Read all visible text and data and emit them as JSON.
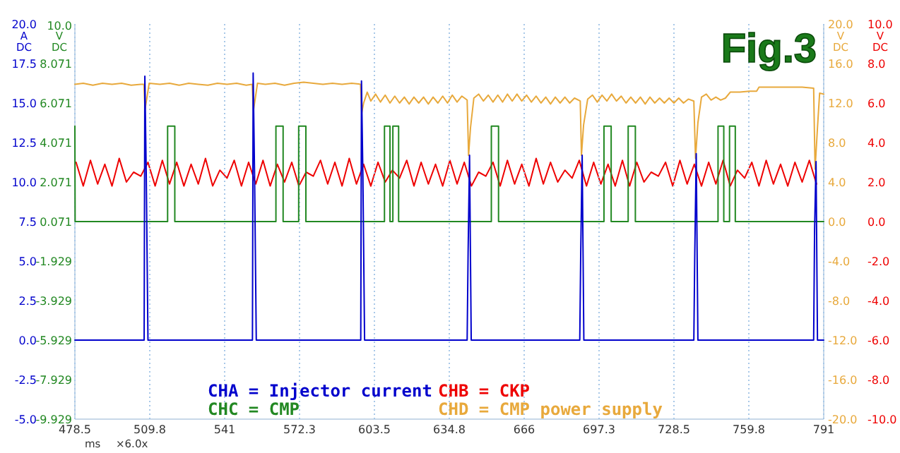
{
  "chart_data": [
    {
      "type": "line",
      "title": "Fig.3",
      "xlabel": "ms",
      "ylabel": "A DC",
      "y2label": "V DC",
      "y3label": "V DC",
      "annotations": [
        "×6.0x"
      ],
      "grid": "x",
      "legend": "bottom",
      "xlim": [
        478.5,
        791.0
      ],
      "xticks": [
        478.5,
        {
          "value": 509.75,
          "label": "509.8"
        },
        541.0,
        {
          "value": 572.25,
          "label": "572.3"
        },
        603.5,
        {
          "value": 634.75,
          "label": "634.8"
        },
        666.0,
        {
          "value": 697.25,
          "label": "697.3"
        },
        728.5,
        {
          "value": 759.75,
          "label": "759.8"
        },
        791.0
      ],
      "ylim": [
        -5,
        20
      ],
      "yticks": [
        {
          "value": 20,
          "label": "20.0"
        },
        17.5,
        {
          "value": 15,
          "label": "15.0"
        },
        12.5,
        {
          "value": 10,
          "label": "10.0"
        },
        7.5,
        {
          "value": 5,
          "label": "5.0"
        },
        2.5,
        {
          "value": 0,
          "label": "0.0"
        },
        -2.5,
        {
          "value": -5,
          "label": "-5.0"
        }
      ],
      "y2lim": [
        -9.929,
        10.071
      ],
      "y2ticks": [
        {
          "value": 10,
          "label": "10.0"
        },
        8.071,
        6.071,
        4.071,
        2.071,
        0.071,
        -1.929,
        -3.929,
        -5.929,
        -7.929,
        -9.929
      ],
      "y3lim": [
        -20,
        20
      ],
      "y3ticks": [
        {
          "value": 20,
          "label": "20.0"
        },
        {
          "value": 16,
          "label": "16.0"
        },
        {
          "value": 12,
          "label": "12.0"
        },
        {
          "value": 8,
          "label": "8.0"
        },
        {
          "value": 4,
          "label": "4.0"
        },
        {
          "value": 0,
          "label": "0.0"
        },
        {
          "value": -4,
          "label": "-4.0"
        },
        {
          "value": -8,
          "label": "-8.0"
        },
        {
          "value": -12,
          "label": "-12.0"
        },
        {
          "value": -16,
          "label": "-16.0"
        },
        {
          "value": -20,
          "label": "-20.0"
        }
      ],
      "series": [
        {
          "name": "CHA = Injector current",
          "color": "#0000cc",
          "x": [
            478.5,
            507.4,
            507.7,
            508.3,
            509.0,
            552.6,
            552.9,
            553.5,
            554.2,
            597.8,
            598.1,
            598.7,
            599.4,
            642.2,
            642.6,
            643.2,
            643.9,
            689.2,
            689.6,
            690.2,
            690.9,
            736.8,
            737.2,
            737.8,
            738.5,
            786.8,
            787.2,
            787.8,
            788.4,
            791.0
          ],
          "values": [
            0,
            0,
            16.7,
            10.3,
            0,
            0,
            16.9,
            10.3,
            0,
            0,
            16.4,
            10.3,
            0,
            0,
            5.5,
            11.7,
            0,
            0,
            5.5,
            11.7,
            0,
            0,
            5.5,
            11.8,
            0,
            0,
            7.0,
            11.3,
            0,
            0
          ]
        },
        {
          "name": "CHC = CMP",
          "color": "#228822",
          "axis": "y2",
          "x": [
            478.5,
            478.6,
            517.2,
            517.2,
            520.2,
            520.2,
            562.4,
            562.4,
            565.4,
            565.4,
            571.9,
            571.9,
            574.9,
            574.9,
            607.7,
            607.7,
            610.0,
            610.0,
            611.2,
            611.2,
            613.6,
            613.6,
            652.3,
            652.3,
            655.3,
            655.3,
            699.3,
            699.3,
            702.3,
            702.3,
            709.4,
            709.4,
            712.4,
            712.4,
            746.9,
            746.9,
            749.3,
            749.3,
            751.7,
            751.7,
            754.1,
            754.1,
            791.0
          ],
          "values": [
            4.9,
            0.07,
            0.07,
            4.9,
            4.9,
            0.07,
            0.07,
            4.9,
            4.9,
            0.07,
            0.07,
            4.9,
            4.9,
            0.07,
            0.07,
            4.9,
            4.9,
            0.07,
            0.07,
            4.9,
            4.9,
            0.07,
            0.07,
            4.9,
            4.9,
            0.07,
            0.07,
            4.9,
            4.9,
            0.07,
            0.07,
            4.9,
            4.9,
            0.07,
            0.07,
            4.9,
            4.9,
            0.07,
            0.07,
            4.9,
            4.9,
            0.07,
            0.07
          ]
        },
        {
          "name": "CHD = CMP power supply",
          "color": "#e8a93c",
          "axis": "y3",
          "x": [
            478.5,
            482,
            486,
            490,
            494,
            498,
            502,
            506,
            507.3,
            507.8,
            508.6,
            509.5,
            514,
            518,
            522,
            526,
            530,
            534,
            538,
            542,
            546,
            550,
            552.5,
            553.0,
            553.8,
            554.7,
            558,
            562,
            566,
            570,
            574,
            578,
            582,
            586,
            590,
            594,
            597.7,
            598.2,
            599.0,
            600.5,
            602,
            604,
            606,
            608,
            610,
            612,
            614,
            616,
            618,
            620,
            622,
            624,
            626,
            628,
            630,
            632,
            634,
            636,
            638,
            640,
            642.2,
            642.8,
            643.6,
            645,
            647,
            649,
            651,
            653,
            655,
            657,
            659,
            661,
            663,
            665,
            667,
            669,
            671,
            673,
            675,
            677,
            679,
            681,
            683,
            685,
            687,
            689.4,
            689.9,
            690.8,
            692.5,
            694.5,
            696.5,
            698.5,
            700.5,
            702.5,
            704.5,
            706.5,
            708.5,
            710.5,
            712.5,
            714.5,
            716.5,
            718.5,
            720.5,
            722.5,
            724.5,
            726.5,
            728.5,
            730.5,
            732.5,
            734.5,
            736.8,
            737.5,
            738.5,
            740,
            742,
            744,
            746,
            748,
            750,
            752,
            756,
            760,
            763,
            764,
            770,
            776,
            782,
            786.8,
            787.4,
            788.4,
            789.3,
            791.0
          ],
          "values": [
            13.9,
            14.0,
            13.8,
            14.0,
            13.9,
            14.0,
            13.8,
            13.9,
            13.9,
            11.4,
            12.6,
            14.0,
            13.9,
            14.0,
            13.8,
            14.0,
            13.9,
            13.8,
            14.0,
            13.9,
            14.0,
            13.8,
            13.9,
            11.2,
            12.5,
            14.0,
            13.9,
            14.0,
            13.8,
            14.0,
            14.1,
            14.0,
            13.9,
            14.0,
            13.9,
            14.0,
            13.9,
            11.0,
            12.0,
            13.1,
            12.2,
            12.9,
            12.1,
            12.8,
            12.0,
            12.7,
            12.0,
            12.6,
            11.9,
            12.6,
            12.0,
            12.6,
            11.9,
            12.6,
            12.0,
            12.7,
            12.0,
            12.8,
            12.1,
            12.7,
            12.3,
            6.7,
            9.5,
            12.5,
            12.9,
            12.2,
            12.8,
            12.1,
            12.8,
            12.1,
            12.9,
            12.2,
            12.9,
            12.2,
            12.8,
            12.1,
            12.7,
            12.0,
            12.6,
            11.9,
            12.6,
            12.0,
            12.6,
            12.0,
            12.5,
            12.2,
            6.7,
            9.8,
            12.4,
            12.8,
            12.1,
            12.8,
            12.2,
            12.9,
            12.2,
            12.7,
            12.0,
            12.6,
            12.0,
            12.6,
            11.9,
            12.6,
            12.0,
            12.5,
            12.0,
            12.5,
            12.0,
            12.5,
            12.0,
            12.4,
            12.2,
            6.4,
            10.0,
            12.6,
            12.9,
            12.3,
            12.6,
            12.3,
            12.5,
            13.1,
            13.1,
            13.2,
            13.2,
            13.6,
            13.6,
            13.6,
            13.6,
            13.5,
            5.3,
            9.5,
            13.0,
            12.9
          ]
        }
      ]
    },
    {
      "type": "line",
      "ylabel": "V DC",
      "legend": "bottom",
      "tick_labels": "y",
      "xlim": [
        478.5,
        791.0
      ],
      "ylim": [
        -10,
        10
      ],
      "yticks": [
        {
          "value": 10,
          "label": "10.0"
        },
        {
          "value": 8,
          "label": "8.0"
        },
        {
          "value": 6,
          "label": "6.0"
        },
        {
          "value": 4,
          "label": "4.0"
        },
        {
          "value": 2,
          "label": "2.0"
        },
        {
          "value": 0,
          "label": "0.0"
        },
        {
          "value": -2,
          "label": "-2.0"
        },
        {
          "value": -4,
          "label": "-4.0"
        },
        {
          "value": -6,
          "label": "-6.0"
        },
        {
          "value": -8,
          "label": "-8.0"
        },
        {
          "value": -10,
          "label": "-10.0"
        }
      ],
      "series": [
        {
          "name": "CHB = CKP",
          "color": "#ee0000",
          "x": [
            479,
            482,
            485,
            488,
            491,
            494,
            497,
            500,
            503,
            506,
            509,
            512,
            515,
            518,
            521,
            524,
            527,
            530,
            533,
            536,
            539,
            542,
            545,
            548,
            551,
            554,
            557,
            560,
            563,
            566,
            569,
            572,
            575,
            578,
            581,
            584,
            587,
            590,
            593,
            596,
            599,
            602,
            605,
            608,
            611,
            614,
            617,
            620,
            623,
            626,
            629,
            632,
            635,
            638,
            641,
            644,
            647,
            650,
            653,
            656,
            659,
            662,
            665,
            668,
            671,
            674,
            677,
            680,
            683,
            686,
            689,
            692,
            695,
            698,
            701,
            704,
            707,
            710,
            713,
            716,
            719,
            722,
            725,
            728,
            731,
            734,
            737,
            740,
            743,
            746,
            749,
            752,
            755,
            758,
            761,
            764,
            767,
            770,
            773,
            776,
            779,
            782,
            785,
            788
          ],
          "values": [
            3.0,
            1.8,
            3.1,
            1.9,
            2.9,
            1.8,
            3.2,
            2.0,
            2.5,
            2.3,
            3.0,
            1.8,
            3.1,
            1.9,
            3.0,
            1.8,
            2.9,
            1.9,
            3.2,
            1.8,
            2.6,
            2.2,
            3.1,
            1.8,
            3.0,
            1.9,
            3.1,
            1.8,
            2.9,
            2.0,
            3.0,
            1.8,
            2.5,
            2.3,
            3.1,
            1.9,
            3.0,
            1.8,
            3.2,
            1.9,
            2.9,
            1.8,
            3.0,
            2.0,
            2.6,
            2.2,
            3.1,
            1.8,
            3.0,
            1.9,
            2.9,
            1.8,
            3.1,
            1.9,
            3.0,
            1.8,
            2.5,
            2.3,
            3.0,
            1.8,
            3.1,
            1.9,
            2.9,
            1.8,
            3.2,
            1.9,
            3.0,
            2.0,
            2.6,
            2.2,
            3.1,
            1.8,
            3.0,
            1.9,
            2.9,
            1.8,
            3.1,
            1.8,
            3.0,
            2.0,
            2.5,
            2.3,
            3.0,
            1.8,
            3.1,
            1.9,
            2.9,
            1.8,
            3.0,
            1.9,
            3.1,
            1.8,
            2.6,
            2.2,
            3.0,
            1.8,
            3.1,
            1.9,
            2.9,
            1.8,
            3.0,
            2.0,
            3.1,
            1.9
          ]
        }
      ]
    }
  ]
}
